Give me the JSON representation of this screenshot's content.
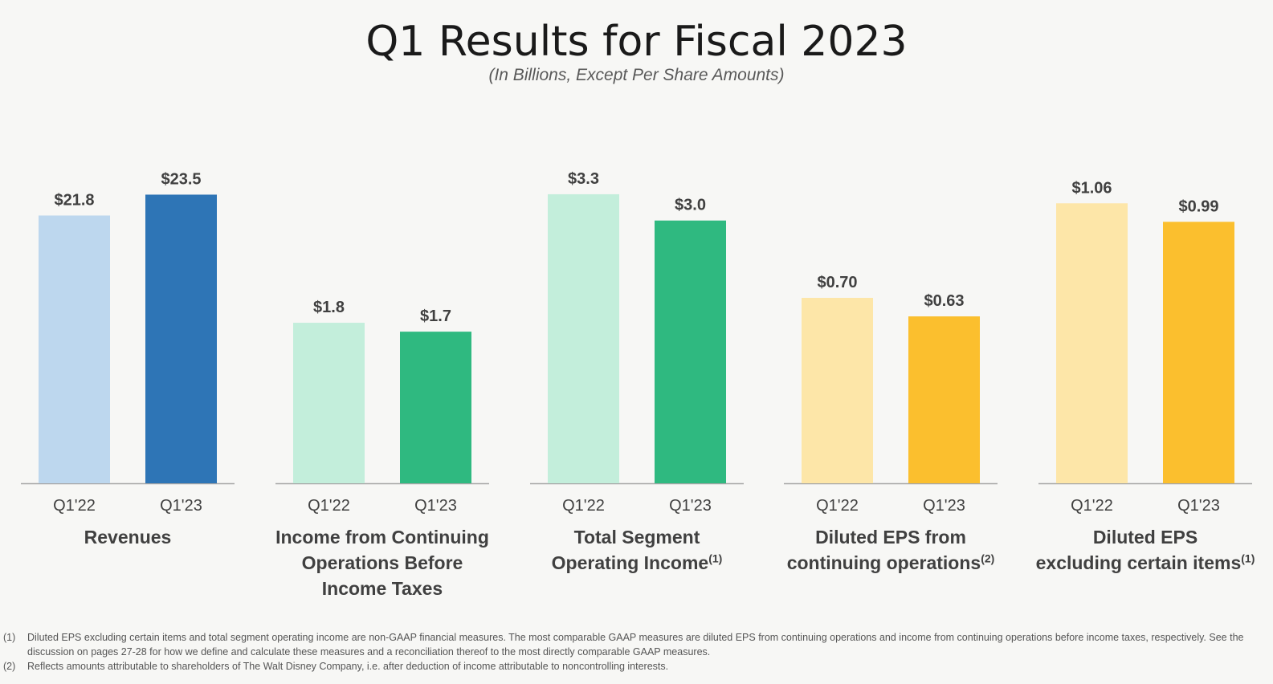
{
  "title": "Q1 Results for Fiscal 2023",
  "subtitle": "(In Billions, Except Per Share Amounts)",
  "chart_data": {
    "type": "bar",
    "ylim": [
      0,
      24
    ],
    "categories": [
      "Q1'22",
      "Q1'23"
    ],
    "groups": [
      {
        "label_lines": [
          "Revenues"
        ],
        "superscript": "",
        "values": [
          21.8,
          23.5
        ],
        "data_labels": [
          "$21.8",
          "$23.5"
        ],
        "colors": [
          "#bdd7ee",
          "#2e75b6"
        ]
      },
      {
        "label_lines": [
          "Income from Continuing",
          "Operations Before",
          "Income Taxes"
        ],
        "superscript": "",
        "values": [
          1.8,
          1.7
        ],
        "data_labels": [
          "$1.8",
          "$1.7"
        ],
        "colors": [
          "#c3eedb",
          "#2fb980"
        ]
      },
      {
        "label_lines": [
          "Total Segment",
          "Operating Income"
        ],
        "superscript": "(1)",
        "values": [
          3.3,
          3.0
        ],
        "data_labels": [
          "$3.3",
          "$3.0"
        ],
        "colors": [
          "#c3eedb",
          "#2fb980"
        ]
      },
      {
        "label_lines": [
          "Diluted EPS from",
          "continuing operations"
        ],
        "superscript": "(2)",
        "values": [
          0.7,
          0.63
        ],
        "data_labels": [
          "$0.70",
          "$0.63"
        ],
        "colors": [
          "#fde6a8",
          "#fbbf2e"
        ]
      },
      {
        "label_lines": [
          "Diluted EPS",
          "excluding certain items"
        ],
        "superscript": "(1)",
        "values": [
          1.06,
          0.99
        ],
        "data_labels": [
          "$1.06",
          "$0.99"
        ],
        "colors": [
          "#fde6a8",
          "#fbbf2e"
        ]
      }
    ]
  },
  "footnotes": [
    {
      "num": "(1)",
      "text": "Diluted EPS excluding certain items and total segment operating income are non-GAAP financial measures. The most comparable GAAP measures are diluted EPS from continuing operations and income from continuing operations before income taxes, respectively. See the discussion on pages 27-28 for how we define and calculate these measures and a reconciliation thereof to the most directly comparable GAAP measures."
    },
    {
      "num": "(2)",
      "text": "Reflects amounts attributable to shareholders of The Walt Disney Company, i.e. after deduction of income attributable to noncontrolling interests."
    }
  ]
}
